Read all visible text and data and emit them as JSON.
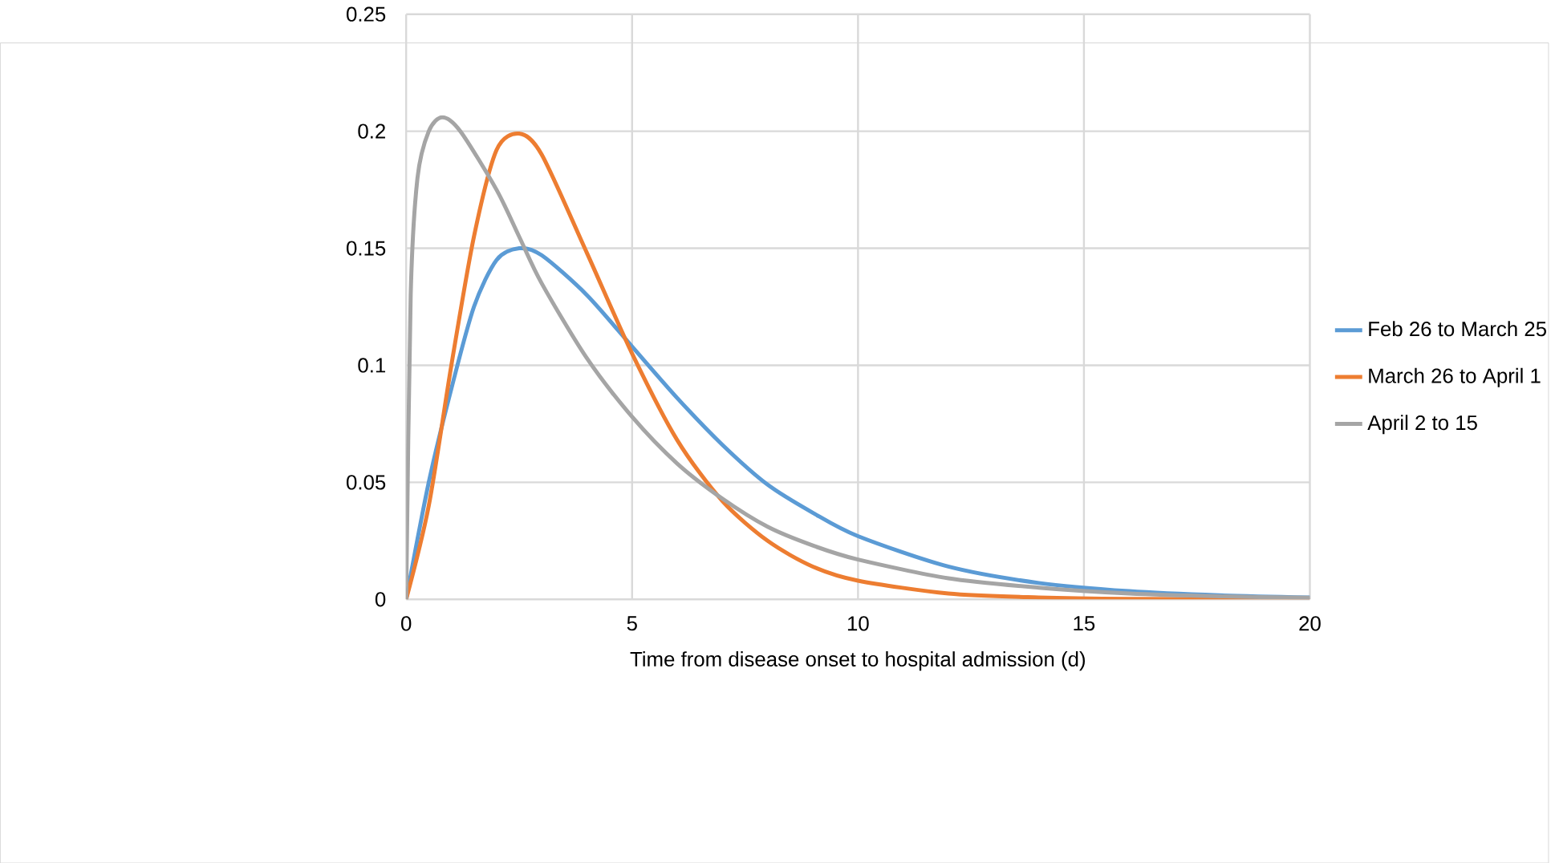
{
  "chart_data": {
    "type": "line",
    "xlabel": "Time from disease onset to hospital admission (d)",
    "xlim": [
      0,
      20
    ],
    "ylim": [
      0,
      0.25
    ],
    "xticks": [
      0,
      5,
      10,
      15,
      20
    ],
    "yticks": [
      0,
      0.05,
      0.1,
      0.15,
      0.2,
      0.25
    ],
    "grid": true,
    "legend": "right",
    "marker": "none",
    "line_style": "solid",
    "series": [
      {
        "name": "Feb 26 to March 25",
        "color": "#5b9bd5",
        "x": [
          0,
          0.5,
          1,
          1.5,
          2,
          2.5,
          3,
          4,
          5,
          6,
          7,
          8,
          9,
          10,
          12,
          14,
          16,
          18,
          20
        ],
        "values": [
          0,
          0.05,
          0.09,
          0.125,
          0.145,
          0.15,
          0.147,
          0.13,
          0.108,
          0.086,
          0.066,
          0.049,
          0.037,
          0.027,
          0.014,
          0.007,
          0.0035,
          0.0017,
          0.0008
        ]
      },
      {
        "name": "March 26 to April 1",
        "color": "#ed7d31",
        "x": [
          0,
          0.5,
          1,
          1.5,
          2,
          2.5,
          3,
          4,
          5,
          6,
          7,
          8,
          9,
          10,
          12,
          14,
          16,
          20
        ],
        "values": [
          0,
          0.04,
          0.1,
          0.155,
          0.192,
          0.199,
          0.19,
          0.148,
          0.105,
          0.068,
          0.042,
          0.025,
          0.014,
          0.008,
          0.0025,
          0.0008,
          0.0002,
          0
        ]
      },
      {
        "name": "April 2 to 15",
        "color": "#a5a5a5",
        "x": [
          0,
          0.1,
          0.25,
          0.5,
          0.8,
          1.2,
          2,
          2.5,
          3,
          4,
          5,
          6,
          7,
          8,
          9,
          10,
          12,
          14,
          16,
          18,
          20
        ],
        "values": [
          0,
          0.13,
          0.18,
          0.2,
          0.206,
          0.2,
          0.175,
          0.155,
          0.135,
          0.103,
          0.078,
          0.058,
          0.043,
          0.031,
          0.023,
          0.017,
          0.009,
          0.005,
          0.0025,
          0.0013,
          0.0007
        ]
      }
    ]
  }
}
